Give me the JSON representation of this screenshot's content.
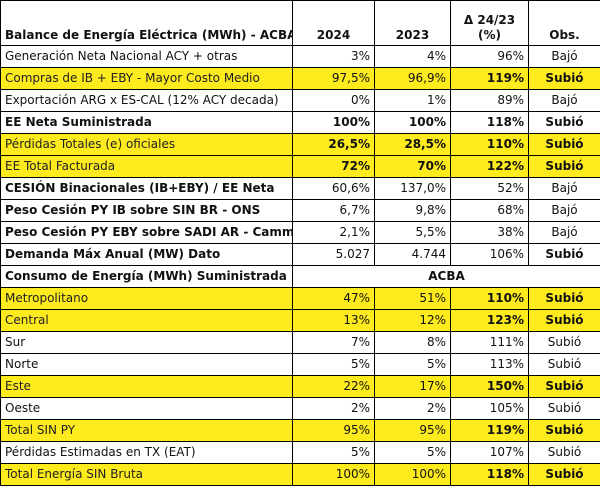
{
  "table": {
    "headers": {
      "label": "Balance de Energía Eléctrica (MWh) - ACBA",
      "y2024": "2024",
      "y2023": "2023",
      "delta_line1": "Δ 24/23",
      "delta_line2": "(%)",
      "obs": "Obs."
    },
    "rows": [
      {
        "label": "Generación Neta Nacional ACY + otras",
        "v2024": "3%",
        "v2023": "4%",
        "delta": "96%",
        "obs": "Bajó"
      },
      {
        "label": "Compras de IB + EBY - Mayor Costo Medio",
        "v2024": "97,5%",
        "v2023": "96,9%",
        "delta": "119%",
        "obs": "Subió"
      },
      {
        "label": "Exportación ARG x ES-CAL (12% ACY decada)",
        "v2024": "0%",
        "v2023": "1%",
        "delta": "89%",
        "obs": "Bajó"
      },
      {
        "label": "EE Neta Suministrada",
        "v2024": "100%",
        "v2023": "100%",
        "delta": "118%",
        "obs": "Subió"
      },
      {
        "label": "Pérdidas Totales (e) oficiales",
        "v2024": "26,5%",
        "v2023": "28,5%",
        "delta": "110%",
        "obs": "Subió"
      },
      {
        "label": "EE Total Facturada",
        "v2024": "72%",
        "v2023": "70%",
        "delta": "122%",
        "obs": "Subió"
      },
      {
        "label": "CESIÓN Binacionales (IB+EBY) / EE Neta",
        "v2024": "60,6%",
        "v2023": "137,0%",
        "delta": "52%",
        "obs": "Bajó"
      },
      {
        "label": "Peso Cesión PY IB sobre SIN BR - ONS",
        "v2024": "6,7%",
        "v2023": "9,8%",
        "delta": "68%",
        "obs": "Bajó"
      },
      {
        "label": "Peso Cesión PY EBY sobre SADI AR - Cammesa",
        "v2024": "2,1%",
        "v2023": "5,5%",
        "delta": "38%",
        "obs": "Bajó"
      },
      {
        "label": "Demanda Máx Anual (MW) Dato",
        "v2024": "5.027",
        "v2023": "4.744",
        "delta": "106%",
        "obs": "Subió"
      }
    ],
    "section": {
      "label": "Consumo de Energía (MWh) Suministrada",
      "merged": "ACBA"
    },
    "rows2": [
      {
        "label": "Metropolitano",
        "v2024": "47%",
        "v2023": "51%",
        "delta": "110%",
        "obs": "Subió"
      },
      {
        "label": "Central",
        "v2024": "13%",
        "v2023": "12%",
        "delta": "123%",
        "obs": "Subió"
      },
      {
        "label": "Sur",
        "v2024": "7%",
        "v2023": "8%",
        "delta": "111%",
        "obs": "Subió"
      },
      {
        "label": "Norte",
        "v2024": "5%",
        "v2023": "5%",
        "delta": "113%",
        "obs": "Subió"
      },
      {
        "label": "Este",
        "v2024": "22%",
        "v2023": "17%",
        "delta": "150%",
        "obs": "Subió"
      },
      {
        "label": "Oeste",
        "v2024": "2%",
        "v2023": "2%",
        "delta": "105%",
        "obs": "Subió"
      },
      {
        "label": "Total SIN PY",
        "v2024": "95%",
        "v2023": "95%",
        "delta": "119%",
        "obs": "Subió"
      },
      {
        "label": "Pérdidas Estimadas en TX (EAT)",
        "v2024": "5%",
        "v2023": "5%",
        "delta": "107%",
        "obs": "Subió"
      },
      {
        "label": "Total Energía SIN Bruta",
        "v2024": "100%",
        "v2023": "100%",
        "delta": "118%",
        "obs": "Subió"
      }
    ]
  }
}
